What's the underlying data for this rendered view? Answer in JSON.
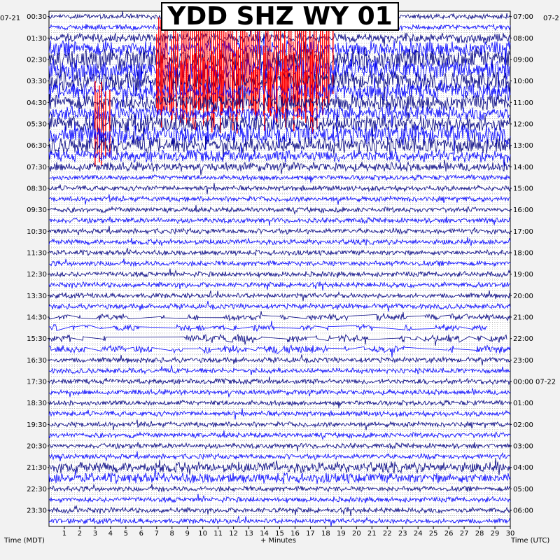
{
  "title": "YDD SHZ WY 01",
  "left_date": "07-21",
  "right_date": "07-2",
  "left_axis_label": "Time (MDT)",
  "right_axis_label": "Time (UTC)",
  "bottom_axis_label": "+ Minutes",
  "colors": {
    "dark": "#000080",
    "blue": "#0000ff",
    "clip": "#ff0000",
    "grid": "#8a8a8a"
  },
  "chart_data": {
    "type": "line",
    "description_note": "",
    "x_ticks": [
      "1",
      "2",
      "3",
      "4",
      "5",
      "6",
      "7",
      "8",
      "9",
      "10",
      "11",
      "12",
      "13",
      "14",
      "15",
      "16",
      "17",
      "18",
      "19",
      "20",
      "21",
      "22",
      "23",
      "24",
      "25",
      "26",
      "27",
      "28",
      "29",
      "30"
    ],
    "x_range": [
      0,
      30
    ],
    "left_ticks": [
      "00:30",
      "01:30",
      "02:30",
      "03:30",
      "04:30",
      "05:30",
      "06:30",
      "07:30",
      "08:30",
      "09:30",
      "10:30",
      "11:30",
      "12:30",
      "13:30",
      "14:30",
      "15:30",
      "16:30",
      "17:30",
      "18:30",
      "19:30",
      "20:30",
      "21:30",
      "22:30",
      "23:30"
    ],
    "right_ticks": [
      "07:00",
      "08:00",
      "09:00",
      "10:00",
      "11:00",
      "12:00",
      "13:00",
      "14:00",
      "15:00",
      "16:00",
      "17:00",
      "18:00",
      "19:00",
      "20:00",
      "21:00",
      "22:00",
      "23:00",
      "00:00 07-22",
      "01:00",
      "02:00",
      "03:00",
      "04:00",
      "05:00",
      "06:00"
    ],
    "trace_count": 48,
    "trace_colors": [
      "dark",
      "blue",
      "dark",
      "blue"
    ],
    "activity": [
      {
        "row": 0,
        "level": 0.8
      },
      {
        "row": 1,
        "level": 0.8
      },
      {
        "row": 2,
        "level": 1.5
      },
      {
        "row": 3,
        "level": 2.5,
        "clip_from": 7,
        "clip_to": 18.5
      },
      {
        "row": 4,
        "level": 3.5,
        "clip_from": 7,
        "clip_to": 18.5
      },
      {
        "row": 5,
        "level": 3.5,
        "clip_from": 7,
        "clip_to": 18.5
      },
      {
        "row": 6,
        "level": 3,
        "clip_from": 7,
        "clip_to": 18
      },
      {
        "row": 7,
        "level": 2.8,
        "clip_from": 6.5,
        "clip_to": 17.5
      },
      {
        "row": 8,
        "level": 2.5
      },
      {
        "row": 9,
        "level": 2.2
      },
      {
        "row": 10,
        "level": 2.8,
        "clip_from": 3,
        "clip_to": 4
      },
      {
        "row": 11,
        "level": 3
      },
      {
        "row": 12,
        "level": 2.6
      },
      {
        "row": 13,
        "level": 1.8
      },
      {
        "row": 14,
        "level": 1.4
      },
      {
        "row": 28,
        "level": 1,
        "gappy": true
      },
      {
        "row": 29,
        "level": 1,
        "gappy": true
      },
      {
        "row": 30,
        "level": 1.2,
        "gappy": true
      },
      {
        "row": 31,
        "level": 1.2,
        "gappy": true
      },
      {
        "row": 42,
        "level": 1.6
      },
      {
        "row": 43,
        "level": 1.6
      }
    ]
  }
}
